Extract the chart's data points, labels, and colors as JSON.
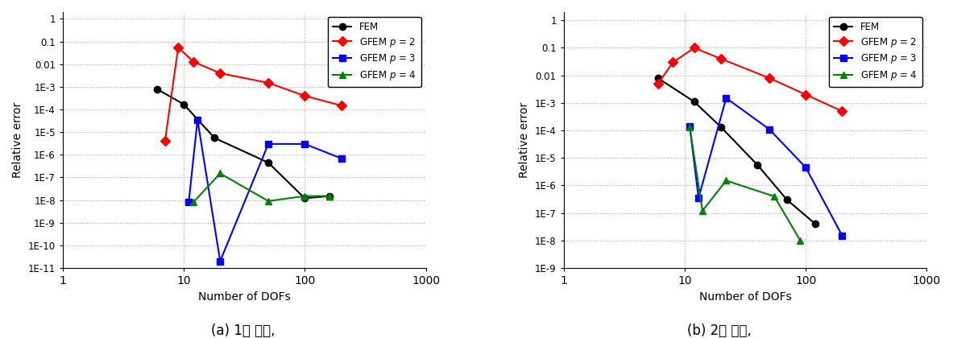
{
  "chart1": {
    "title": "(a) 1차 모드,",
    "xlabel": "Number of DOFs",
    "ylabel": "Relative error",
    "xlim": [
      1,
      1000
    ],
    "ylim": [
      1e-11,
      2
    ],
    "yticks": [
      1e-11,
      1e-10,
      1e-09,
      1e-08,
      1e-07,
      1e-06,
      1e-05,
      0.0001,
      0.001,
      0.01,
      0.1,
      1
    ],
    "ylabels": [
      "1E-11",
      "1E-10",
      "1E-9",
      "1E-8",
      "1E-7",
      "1E-6",
      "1E-5",
      "1E-4",
      "1E-3",
      "0.01",
      "0.1",
      "1"
    ],
    "FEM": {
      "x": [
        6,
        10,
        18,
        50,
        100,
        160
      ],
      "y": [
        0.0008,
        0.00017,
        5.5e-06,
        4.5e-07,
        1.2e-08,
        1.5e-08
      ],
      "color": "#000000",
      "marker": "o",
      "label": "FEM"
    },
    "GFEM_p2": {
      "x": [
        7,
        9,
        12,
        20,
        50,
        100,
        200
      ],
      "y": [
        4e-06,
        0.055,
        0.013,
        0.004,
        0.0015,
        0.0004,
        0.00015
      ],
      "color": "#ff0000",
      "marker": "D",
      "label": "GFEM p = 2"
    },
    "GFEM_p3": {
      "x": [
        11,
        13,
        20,
        50,
        100,
        200
      ],
      "y": [
        8e-09,
        3.5e-05,
        2e-11,
        3e-06,
        3e-06,
        7e-07
      ],
      "color": "#0000ff",
      "marker": "s",
      "label": "GFEM p = 3"
    },
    "GFEM_p4": {
      "x": [
        12,
        20,
        50,
        100,
        160
      ],
      "y": [
        8e-09,
        1.5e-07,
        9e-09,
        1.5e-08,
        1.5e-08
      ],
      "color": "#008000",
      "marker": "^",
      "label": "GFEM p = 4"
    }
  },
  "chart2": {
    "title": "(b) 2차 모드,",
    "xlabel": "Number of DOFs",
    "ylabel": "Relative error",
    "xlim": [
      1,
      1000
    ],
    "ylim": [
      1e-09,
      2
    ],
    "yticks": [
      1e-09,
      1e-08,
      1e-07,
      1e-06,
      1e-05,
      0.0001,
      0.001,
      0.01,
      0.1,
      1
    ],
    "ylabels": [
      "1E-9",
      "1E-8",
      "1E-7",
      "1E-6",
      "1E-5",
      "1E-4",
      "1E-3",
      "0.01",
      "0.1",
      "1"
    ],
    "FEM": {
      "x": [
        6,
        12,
        20,
        40,
        70,
        120
      ],
      "y": [
        0.008,
        0.0011,
        0.00013,
        5.5e-06,
        3e-07,
        4e-08
      ],
      "color": "#000000",
      "marker": "o",
      "label": "FEM"
    },
    "GFEM_p2": {
      "x": [
        6,
        8,
        12,
        20,
        50,
        100,
        200
      ],
      "y": [
        0.005,
        0.03,
        0.1,
        0.04,
        0.008,
        0.002,
        0.0005
      ],
      "color": "#ff0000",
      "marker": "D",
      "label": "GFEM p = 2"
    },
    "GFEM_p3": {
      "x": [
        11,
        13,
        22,
        50,
        100,
        200
      ],
      "y": [
        0.00014,
        3.5e-07,
        0.0015,
        0.00011,
        4.5e-06,
        1.5e-08
      ],
      "color": "#0000ff",
      "marker": "s",
      "label": "GFEM p = 3"
    },
    "GFEM_p4": {
      "x": [
        11,
        14,
        22,
        55,
        90
      ],
      "y": [
        0.00013,
        1.2e-07,
        1.5e-06,
        4e-07,
        1e-08
      ],
      "color": "#008000",
      "marker": "^",
      "label": "GFEM p = 4"
    }
  },
  "bg_color": "#ffffff",
  "grid_color": "#aaaaaa",
  "linewidth": 1.5,
  "markersize": 6
}
